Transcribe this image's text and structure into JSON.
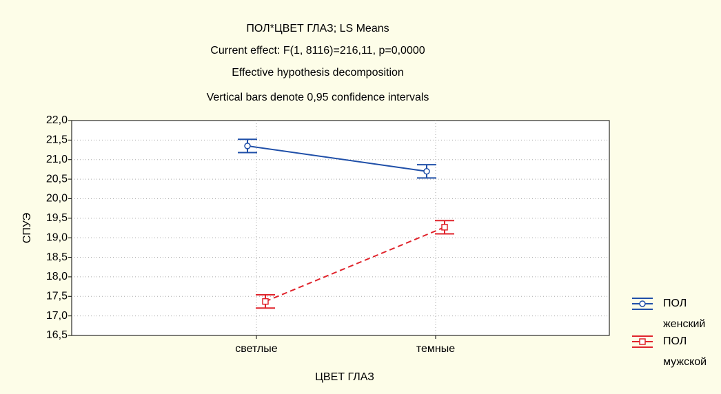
{
  "chart_data": {
    "type": "line",
    "title": "ПОЛ*ЦВЕТ ГЛАЗ; LS Means",
    "subtitle": [
      "Current effect: F(1, 8116)=216,11, p=0,0000",
      "Effective hypothesis decomposition",
      "Vertical bars denote 0,95 confidence intervals"
    ],
    "x_label": "ЦВЕТ ГЛАЗ",
    "y_label": "СПУЭ",
    "categories": [
      "светлые",
      "темные"
    ],
    "legend_title": "ПОЛ",
    "series": [
      {
        "name": "женский",
        "color": "#1f4fa8",
        "dashed": false,
        "marker": "circle",
        "values": [
          21.35,
          20.7
        ],
        "errors": [
          0.17,
          0.17
        ]
      },
      {
        "name": "мужской",
        "color": "#e0232b",
        "dashed": true,
        "marker": "square",
        "values": [
          17.37,
          19.27
        ],
        "errors": [
          0.17,
          0.17
        ]
      }
    ],
    "ylim": [
      16.5,
      22.0
    ],
    "yticks": [
      {
        "value": 16.5,
        "label": "16,5"
      },
      {
        "value": 17.0,
        "label": "17,0"
      },
      {
        "value": 17.5,
        "label": "17,5"
      },
      {
        "value": 18.0,
        "label": "18,0"
      },
      {
        "value": 18.5,
        "label": "18,5"
      },
      {
        "value": 19.0,
        "label": "19,0"
      },
      {
        "value": 19.5,
        "label": "19,5"
      },
      {
        "value": 20.0,
        "label": "20,0"
      },
      {
        "value": 20.5,
        "label": "20,5"
      },
      {
        "value": 21.0,
        "label": "21,0"
      },
      {
        "value": 21.5,
        "label": "21,5"
      },
      {
        "value": 22.0,
        "label": "22,0"
      }
    ],
    "grid": true,
    "legend_position": "right"
  }
}
